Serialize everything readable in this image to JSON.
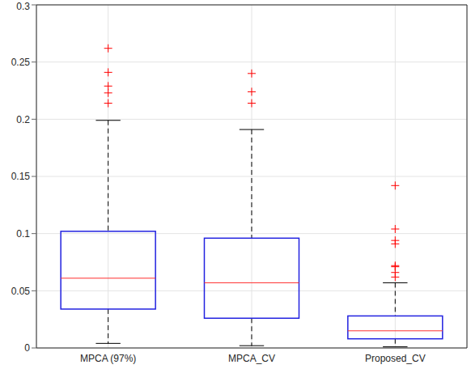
{
  "chart_data": {
    "type": "box",
    "categories": [
      "MPCA (97%)",
      "MPCA_CV",
      "Proposed_CV"
    ],
    "whisker_low": [
      0.004,
      0.002,
      0.001
    ],
    "q1": [
      0.034,
      0.026,
      0.008
    ],
    "median": [
      0.061,
      0.057,
      0.015
    ],
    "q3": [
      0.102,
      0.096,
      0.028
    ],
    "whisker_high": [
      0.199,
      0.191,
      0.057
    ],
    "outliers": [
      [
        0.262,
        0.241,
        0.229,
        0.223,
        0.214
      ],
      [
        0.24,
        0.224,
        0.214
      ],
      [
        0.142,
        0.104,
        0.094,
        0.091,
        0.072,
        0.071,
        0.066,
        0.062
      ]
    ],
    "ylim": [
      0,
      0.3
    ],
    "yticks": [
      0,
      0.05,
      0.1,
      0.15,
      0.2,
      0.25,
      0.3
    ],
    "grid": true,
    "color": "#2222e0",
    "marker": "+"
  }
}
